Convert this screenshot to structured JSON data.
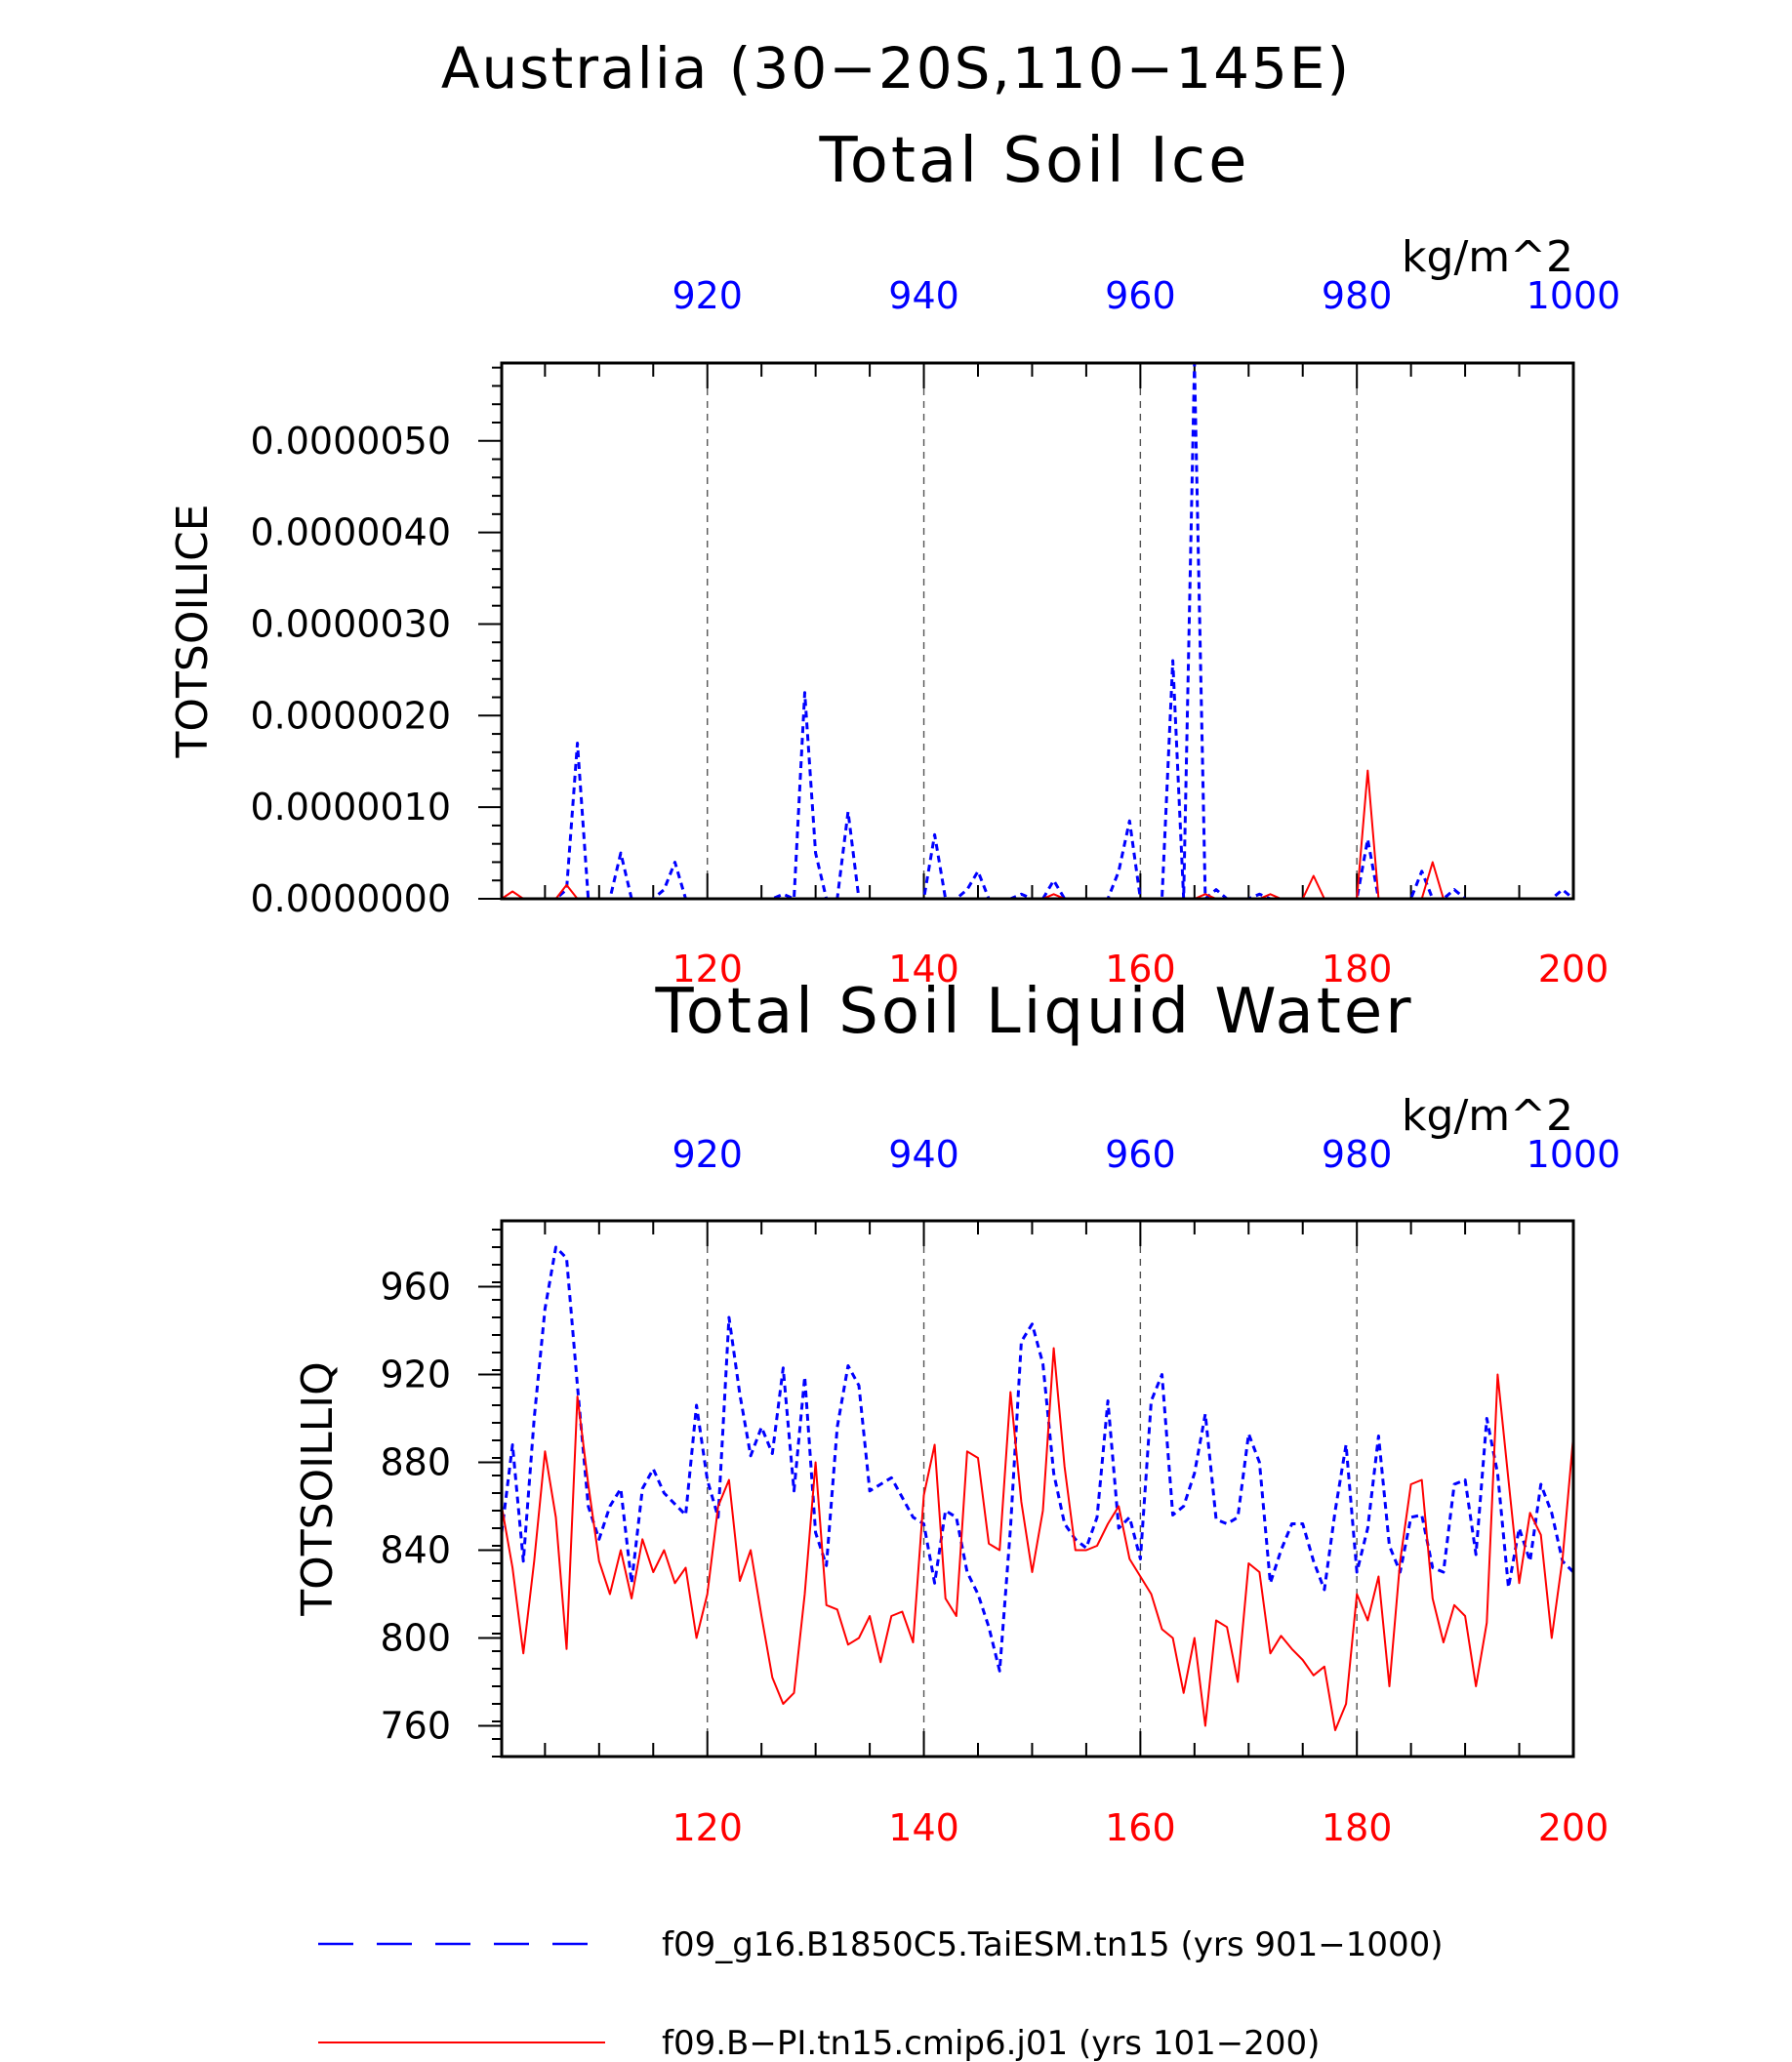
{
  "title": "Australia (30−20S,110−145E)",
  "colors": {
    "blue": "#0000ff",
    "red": "#ff0000",
    "axis": "#000000"
  },
  "top_axis_ticks": [
    "920",
    "940",
    "960",
    "980",
    "1000"
  ],
  "bottom_axis_ticks": [
    "120",
    "140",
    "160",
    "180",
    "200"
  ],
  "legend": [
    {
      "label": "f09_g16.B1850C5.TaiESM.tn15 (yrs 901−1000)",
      "color": "#0000ff",
      "style": "dashed"
    },
    {
      "label": "f09.B−PI.tn15.cmip6.j01 (yrs 101−200)",
      "color": "#ff0000",
      "style": "solid"
    }
  ],
  "chart_data": [
    {
      "type": "line",
      "title": "Total Soil Ice",
      "units": "kg/m^2",
      "ylabel": "TOTSOILICE",
      "ylim": [
        0,
        5.85e-06
      ],
      "yticks": [
        0,
        1e-06,
        2e-06,
        3e-06,
        4e-06,
        5e-06
      ],
      "ytick_labels": [
        "0.0000000",
        "0.0000010",
        "0.0000020",
        "0.0000030",
        "0.0000040",
        "0.0000050"
      ],
      "x_bottom": {
        "range": [
          101,
          200
        ],
        "ticks": [
          120,
          140,
          160,
          180,
          200
        ],
        "color": "#ff0000"
      },
      "x_top": {
        "range": [
          901,
          1000
        ],
        "ticks": [
          920,
          940,
          960,
          980,
          1000
        ],
        "color": "#0000ff"
      },
      "grid": "vertical dashed at major ticks",
      "series": [
        {
          "name": "f09_g16.B1850C5.TaiESM.tn15 (yrs 901−1000)",
          "axis": "top",
          "color": "#0000ff",
          "style": "dashed",
          "x": [
            901,
            902,
            903,
            904,
            905,
            906,
            907,
            908,
            909,
            910,
            911,
            912,
            913,
            914,
            915,
            916,
            917,
            918,
            919,
            920,
            921,
            922,
            923,
            924,
            925,
            926,
            927,
            928,
            929,
            930,
            931,
            932,
            933,
            934,
            935,
            936,
            937,
            938,
            939,
            940,
            941,
            942,
            943,
            944,
            945,
            946,
            947,
            948,
            949,
            950,
            951,
            952,
            953,
            954,
            955,
            956,
            957,
            958,
            959,
            960,
            961,
            962,
            963,
            964,
            965,
            966,
            967,
            968,
            969,
            970,
            971,
            972,
            973,
            974,
            975,
            976,
            977,
            978,
            979,
            980,
            981,
            982,
            983,
            984,
            985,
            986,
            987,
            988,
            989,
            990,
            991,
            992,
            993,
            994,
            995,
            996,
            997,
            998,
            999,
            1000
          ],
          "y": [
            0,
            0,
            0,
            0,
            0,
            0,
            1e-07,
            1.7e-06,
            0,
            0,
            0,
            5e-07,
            0,
            0,
            0,
            1e-07,
            4e-07,
            0,
            0,
            0,
            0,
            0,
            0,
            0,
            0,
            0,
            5e-08,
            0,
            2.25e-06,
            5e-07,
            0,
            0,
            9.5e-07,
            0,
            0,
            0,
            0,
            0,
            0,
            0,
            7e-07,
            0,
            0,
            1e-07,
            3e-07,
            0,
            0,
            0,
            5e-08,
            0,
            0,
            2e-07,
            0,
            0,
            0,
            0,
            0,
            3e-07,
            8.5e-07,
            0,
            0,
            0,
            2.6e-06,
            0,
            5.85e-06,
            0,
            1e-07,
            0,
            0,
            0,
            5e-08,
            0,
            0,
            0,
            0,
            0,
            0,
            0,
            0,
            0,
            6.5e-07,
            0,
            0,
            0,
            0,
            3e-07,
            0,
            0,
            1e-07,
            0,
            0,
            0,
            0,
            0,
            0,
            0,
            0,
            0,
            1e-07,
            0
          ]
        },
        {
          "name": "f09.B−PI.tn15.cmip6.j01 (yrs 101−200)",
          "axis": "bottom",
          "color": "#ff0000",
          "style": "solid",
          "x": [
            101,
            102,
            103,
            104,
            105,
            106,
            107,
            108,
            109,
            110,
            111,
            112,
            113,
            114,
            115,
            116,
            117,
            118,
            119,
            120,
            121,
            122,
            123,
            124,
            125,
            126,
            127,
            128,
            129,
            130,
            131,
            132,
            133,
            134,
            135,
            136,
            137,
            138,
            139,
            140,
            141,
            142,
            143,
            144,
            145,
            146,
            147,
            148,
            149,
            150,
            151,
            152,
            153,
            154,
            155,
            156,
            157,
            158,
            159,
            160,
            161,
            162,
            163,
            164,
            165,
            166,
            167,
            168,
            169,
            170,
            171,
            172,
            173,
            174,
            175,
            176,
            177,
            178,
            179,
            180,
            181,
            182,
            183,
            184,
            185,
            186,
            187,
            188,
            189,
            190,
            191,
            192,
            193,
            194,
            195,
            196,
            197,
            198,
            199,
            200
          ],
          "y": [
            0,
            8e-08,
            0,
            0,
            0,
            0,
            1.5e-07,
            0,
            0,
            0,
            0,
            0,
            0,
            0,
            0,
            0,
            0,
            0,
            0,
            0,
            0,
            0,
            0,
            0,
            0,
            0,
            0,
            0,
            0,
            0,
            0,
            0,
            0,
            0,
            0,
            0,
            0,
            0,
            0,
            0,
            0,
            0,
            0,
            0,
            0,
            0,
            0,
            0,
            0,
            0,
            0,
            5e-08,
            0,
            0,
            0,
            0,
            0,
            0,
            0,
            0,
            0,
            0,
            0,
            0,
            0,
            5e-08,
            0,
            0,
            0,
            0,
            0,
            5e-08,
            0,
            0,
            0,
            2.5e-07,
            0,
            0,
            0,
            0,
            1.4e-06,
            0,
            0,
            0,
            0,
            0,
            4e-07,
            0,
            0,
            0,
            0,
            0,
            0,
            0,
            0,
            0,
            0,
            0,
            0,
            0
          ]
        }
      ]
    },
    {
      "type": "line",
      "title": "Total Soil Liquid Water",
      "units": "kg/m^2",
      "ylabel": "TOTSOILLIQ",
      "ylim": [
        746,
        990
      ],
      "yticks": [
        760,
        800,
        840,
        880,
        920,
        960
      ],
      "ytick_labels": [
        "760",
        "800",
        "840",
        "880",
        "920",
        "960"
      ],
      "x_bottom": {
        "range": [
          101,
          200
        ],
        "ticks": [
          120,
          140,
          160,
          180,
          200
        ],
        "color": "#ff0000"
      },
      "x_top": {
        "range": [
          901,
          1000
        ],
        "ticks": [
          920,
          940,
          960,
          980,
          1000
        ],
        "color": "#0000ff"
      },
      "grid": "vertical dashed at major ticks",
      "series": [
        {
          "name": "f09_g16.B1850C5.TaiESM.tn15 (yrs 901−1000)",
          "axis": "top",
          "color": "#0000ff",
          "style": "dashed",
          "x": [
            901,
            902,
            903,
            904,
            905,
            906,
            907,
            908,
            909,
            910,
            911,
            912,
            913,
            914,
            915,
            916,
            917,
            918,
            919,
            920,
            921,
            922,
            923,
            924,
            925,
            926,
            927,
            928,
            929,
            930,
            931,
            932,
            933,
            934,
            935,
            936,
            937,
            938,
            939,
            940,
            941,
            942,
            943,
            944,
            945,
            946,
            947,
            948,
            949,
            950,
            951,
            952,
            953,
            954,
            955,
            956,
            957,
            958,
            959,
            960,
            961,
            962,
            963,
            964,
            965,
            966,
            967,
            968,
            969,
            970,
            971,
            972,
            973,
            974,
            975,
            976,
            977,
            978,
            979,
            980,
            981,
            982,
            983,
            984,
            985,
            986,
            987,
            988,
            989,
            990,
            991,
            992,
            993,
            994,
            995,
            996,
            997,
            998,
            999,
            1000
          ],
          "y": [
            848,
            888,
            835,
            900,
            950,
            978,
            973,
            915,
            860,
            845,
            860,
            868,
            825,
            868,
            877,
            866,
            861,
            856,
            906,
            872,
            855,
            946,
            911,
            883,
            896,
            884,
            923,
            867,
            919,
            848,
            833,
            896,
            924,
            915,
            867,
            870,
            873,
            864,
            855,
            852,
            825,
            858,
            855,
            830,
            820,
            805,
            785,
            850,
            935,
            943,
            925,
            875,
            852,
            845,
            841,
            855,
            908,
            850,
            855,
            836,
            908,
            920,
            856,
            860,
            875,
            902,
            854,
            852,
            855,
            893,
            880,
            825,
            840,
            852,
            852,
            835,
            822,
            858,
            888,
            830,
            850,
            892,
            842,
            830,
            855,
            856,
            832,
            830,
            870,
            872,
            838,
            900,
            875,
            823,
            850,
            835,
            870,
            857,
            835,
            830
          ]
        },
        {
          "name": "f09.B−PI.tn15.cmip6.j01 (yrs 101−200)",
          "axis": "bottom",
          "color": "#ff0000",
          "style": "solid",
          "x": [
            101,
            102,
            103,
            104,
            105,
            106,
            107,
            108,
            109,
            110,
            111,
            112,
            113,
            114,
            115,
            116,
            117,
            118,
            119,
            120,
            121,
            122,
            123,
            124,
            125,
            126,
            127,
            128,
            129,
            130,
            131,
            132,
            133,
            134,
            135,
            136,
            137,
            138,
            139,
            140,
            141,
            142,
            143,
            144,
            145,
            146,
            147,
            148,
            149,
            150,
            151,
            152,
            153,
            154,
            155,
            156,
            157,
            158,
            159,
            160,
            161,
            162,
            163,
            164,
            165,
            166,
            167,
            168,
            169,
            170,
            171,
            172,
            173,
            174,
            175,
            176,
            177,
            178,
            179,
            180,
            181,
            182,
            183,
            184,
            185,
            186,
            187,
            188,
            189,
            190,
            191,
            192,
            193,
            194,
            195,
            196,
            197,
            198,
            199,
            200
          ],
          "y": [
            860,
            832,
            793,
            835,
            885,
            855,
            795,
            910,
            870,
            835,
            820,
            840,
            818,
            845,
            830,
            840,
            825,
            832,
            800,
            820,
            860,
            872,
            826,
            840,
            810,
            782,
            770,
            775,
            820,
            880,
            815,
            813,
            797,
            800,
            810,
            789,
            810,
            812,
            798,
            865,
            888,
            818,
            810,
            885,
            882,
            843,
            840,
            912,
            862,
            830,
            858,
            932,
            878,
            840,
            840,
            842,
            852,
            860,
            836,
            828,
            820,
            804,
            800,
            775,
            800,
            760,
            808,
            805,
            780,
            834,
            830,
            793,
            801,
            795,
            790,
            783,
            787,
            758,
            770,
            820,
            808,
            828,
            778,
            835,
            870,
            872,
            818,
            798,
            815,
            810,
            778,
            807,
            920,
            872,
            825,
            857,
            847,
            800,
            836,
            892
          ]
        }
      ]
    }
  ]
}
